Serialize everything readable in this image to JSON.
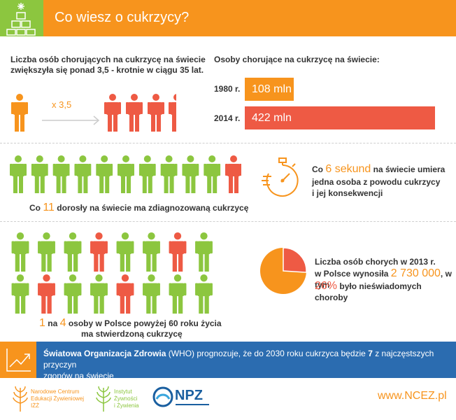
{
  "header": {
    "title": "Co wiesz o cukrzycy?"
  },
  "section1": {
    "left_line1": "Liczba osób chorujących na cukrzycę na świecie",
    "left_line2": "zwiększyła się ponad  3,5 - krotnie w ciągu 35 lat.",
    "multiplier": "x 3,5",
    "right_title": "Osoby chorujące na cukrzycę na świecie:",
    "bars": [
      {
        "year": "1980 r.",
        "value": 108,
        "label": "108 mln",
        "color": "#f7941d"
      },
      {
        "year": "2014 r.",
        "value": 422,
        "label": "422 mln",
        "color": "#ee5a44"
      }
    ]
  },
  "section2": {
    "caption_pre": "Co ",
    "caption_num": "11",
    "caption_post": " dorosły na świecie ma zdiagnozowaną cukrzycę",
    "right_pre": "Co ",
    "right_num": "6 sekund",
    "right_post1": " na świecie umiera",
    "right_line2": "jedna osoba z powodu cukrzycy",
    "right_line3": "i jej konsekwencji"
  },
  "section3": {
    "caption_num1": "1",
    "caption_mid1": " na ",
    "caption_num2": "4",
    "caption_mid2": " osoby w Polsce  powyżej 60 roku życia",
    "caption_line2": "ma stwierdzoną cukrzycę",
    "right_line1": "Liczba osób chorych w 2013 r.",
    "right_line2_pre": "w Polsce wynosiła ",
    "right_line2_num": "2 730 000",
    "right_line2_post": ", w tym",
    "right_line3_num": "26%",
    "right_line3_post": " było nieświadomych choroby",
    "pie_percent": 26
  },
  "who": {
    "bold": "Światowa Organizacja Zdrowia",
    "text1": " (WHO) prognozuje, że do 2030 roku cukrzyca będzie ",
    "num": "7",
    "text2": " z najczęstszych przyczyn",
    "line2": "zgonów na świecie"
  },
  "footer": {
    "logo1": [
      "Narodowe Centrum",
      "Edukacji Żywieniowej",
      "IŻŻ"
    ],
    "logo2": [
      "Instytut",
      "Żywności",
      "i Żywienia"
    ],
    "logo3": "NPZ",
    "url": "www.NCEZ.pl"
  },
  "colors": {
    "green": "#8cc63f",
    "orange": "#f7941d",
    "red": "#ee5a44",
    "blue": "#2b6cb0"
  }
}
